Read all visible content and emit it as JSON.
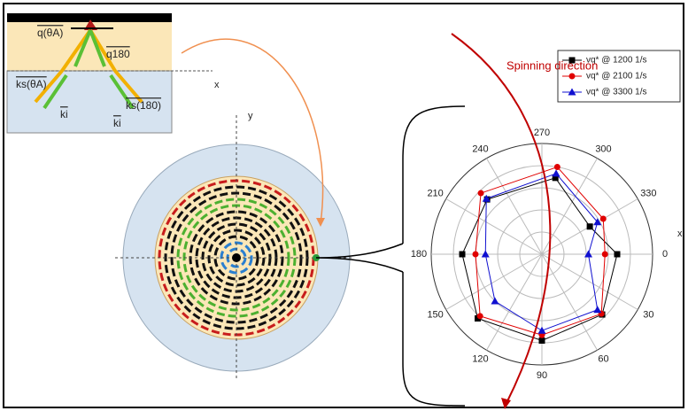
{
  "diagram": {
    "inset_labels": [
      "q(θA)",
      "q180",
      "ks(θA)",
      "ks(180)",
      "ki",
      "ki",
      "x"
    ],
    "disk_label": "y",
    "annotation": "Spinning direction",
    "polar_axis_label": "x"
  },
  "chart_data": {
    "type": "polar",
    "direction": "clockwise",
    "rlim": [
      0,
      10
    ],
    "grid": true,
    "thetaticks": [
      0,
      30,
      60,
      90,
      120,
      150,
      180,
      210,
      240,
      270,
      300,
      330
    ],
    "theta": [
      0,
      45,
      90,
      135,
      180,
      225,
      280,
      330
    ],
    "legend": "upper right",
    "series": [
      {
        "name": "vq* @ 1200 1/s",
        "color": "#000000",
        "marker": "square",
        "values": [
          6.8,
          7.7,
          7.8,
          8.2,
          7.2,
          7.0,
          7.0,
          5.0
        ]
      },
      {
        "name": "vq* @ 2100 1/s",
        "color": "#e00000",
        "marker": "circle",
        "values": [
          5.7,
          7.6,
          7.3,
          7.9,
          6.0,
          7.8,
          8.0,
          6.4
        ]
      },
      {
        "name": "vq* @ 3300 1/s",
        "color": "#1010d0",
        "marker": "triangle",
        "values": [
          4.2,
          7.1,
          6.9,
          6.0,
          5.1,
          7.1,
          7.4,
          5.8
        ]
      }
    ]
  }
}
